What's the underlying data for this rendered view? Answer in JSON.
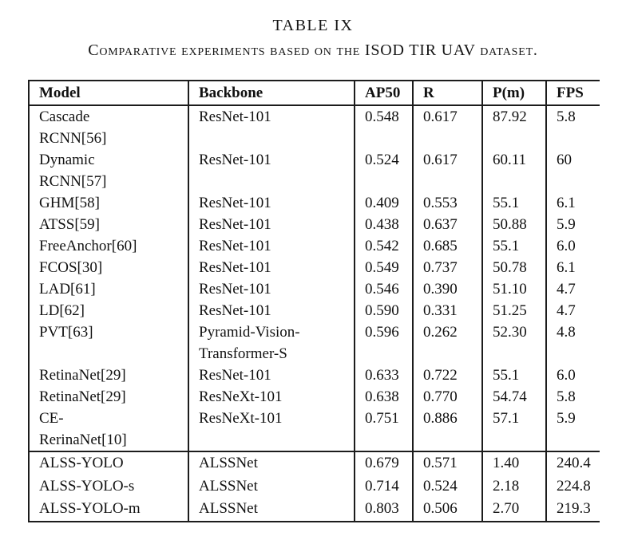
{
  "caption": {
    "label": "TABLE IX",
    "subtitle": "Comparative experiments based on the ISOD TIR UAV dataset."
  },
  "table": {
    "columns": [
      "Model",
      "Backbone",
      "AP50",
      "R",
      "P(m)",
      "FPS"
    ],
    "groups": [
      {
        "rows": [
          {
            "model": "Cascade\nRCNN[56]",
            "backbone": "ResNet-101",
            "ap50": "0.548",
            "r": "0.617",
            "pm": "87.92",
            "fps": "5.8"
          },
          {
            "model": "Dynamic\nRCNN[57]",
            "backbone": "ResNet-101",
            "ap50": "0.524",
            "r": "0.617",
            "pm": "60.11",
            "fps": "60"
          },
          {
            "model": "GHM[58]",
            "backbone": "ResNet-101",
            "ap50": "0.409",
            "r": "0.553",
            "pm": "55.1",
            "fps": "6.1"
          },
          {
            "model": "ATSS[59]",
            "backbone": "ResNet-101",
            "ap50": "0.438",
            "r": "0.637",
            "pm": "50.88",
            "fps": "5.9"
          },
          {
            "model": "FreeAnchor[60]",
            "backbone": "ResNet-101",
            "ap50": "0.542",
            "r": "0.685",
            "pm": "55.1",
            "fps": "6.0"
          },
          {
            "model": "FCOS[30]",
            "backbone": "ResNet-101",
            "ap50": "0.549",
            "r": "0.737",
            "pm": "50.78",
            "fps": "6.1"
          },
          {
            "model": "LAD[61]",
            "backbone": "ResNet-101",
            "ap50": "0.546",
            "r": "0.390",
            "pm": "51.10",
            "fps": "4.7"
          },
          {
            "model": "LD[62]",
            "backbone": "ResNet-101",
            "ap50": "0.590",
            "r": "0.331",
            "pm": "51.25",
            "fps": "4.7"
          },
          {
            "model": "PVT[63]",
            "backbone": "Pyramid-Vision-\nTransformer-S",
            "ap50": "0.596",
            "r": "0.262",
            "pm": "52.30",
            "fps": "4.8"
          },
          {
            "model": "RetinaNet[29]",
            "backbone": "ResNet-101",
            "ap50": "0.633",
            "r": "0.722",
            "pm": "55.1",
            "fps": "6.0"
          },
          {
            "model": "RetinaNet[29]",
            "backbone": "ResNeXt-101",
            "ap50": "0.638",
            "r": "0.770",
            "pm": "54.74",
            "fps": "5.8"
          },
          {
            "model": "CE-\nRerinaNet[10]",
            "backbone": "ResNeXt-101",
            "ap50": "0.751",
            "r": "0.886",
            "pm": "57.1",
            "fps": "5.9"
          }
        ]
      },
      {
        "rows": [
          {
            "model": "ALSS-YOLO",
            "backbone": "ALSSNet",
            "ap50": "0.679",
            "r": "0.571",
            "pm": "1.40",
            "fps": "240.4"
          },
          {
            "model": "ALSS-YOLO-s",
            "backbone": "ALSSNet",
            "ap50": "0.714",
            "r": "0.524",
            "pm": "2.18",
            "fps": "224.8"
          },
          {
            "model": "ALSS-YOLO-m",
            "backbone": "ALSSNet",
            "ap50": "0.803",
            "r": "0.506",
            "pm": "2.70",
            "fps": "219.3"
          }
        ]
      }
    ]
  }
}
